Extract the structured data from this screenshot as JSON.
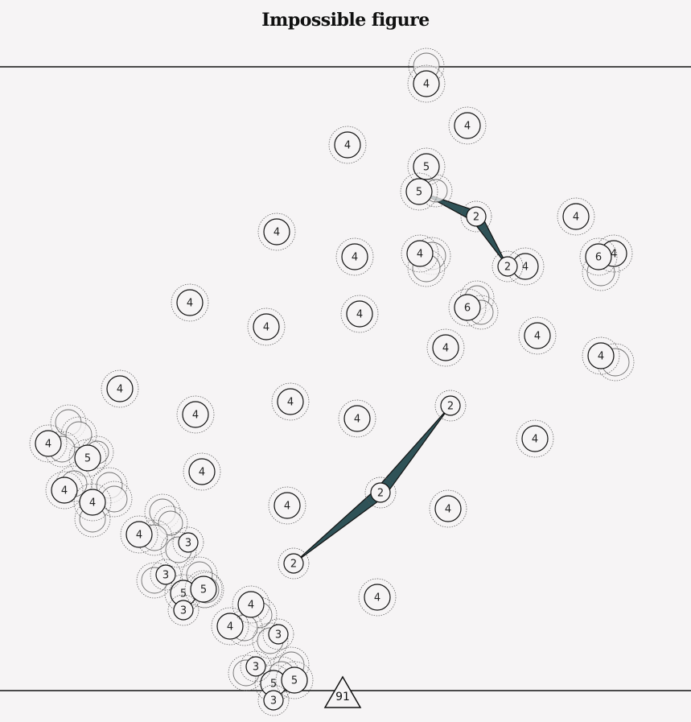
{
  "title": "Impossible figure",
  "badge": {
    "value": "91",
    "shape": "triangle"
  },
  "colors": {
    "background": "#f6f4f5",
    "wedge": "#2f5257",
    "line": "#111111",
    "node_fill": "#f6f4f5"
  },
  "wedges": [
    {
      "from": "n-top-5b",
      "via": "n-top-2a",
      "to": "n-top-2b"
    },
    {
      "from": "n-mid-2a",
      "via": "n-mid-2b",
      "to": "n-mid-2c"
    }
  ],
  "nodes": [
    {
      "id": "n01",
      "label": "4"
    },
    {
      "id": "n02",
      "label": "4"
    },
    {
      "id": "n03",
      "label": "4"
    },
    {
      "id": "n04",
      "label": "4"
    },
    {
      "id": "n05",
      "label": "5"
    },
    {
      "id": "n-top-5b",
      "label": "5"
    },
    {
      "id": "n-top-2a",
      "label": "2"
    },
    {
      "id": "n08",
      "label": "4"
    },
    {
      "id": "n09",
      "label": "4"
    },
    {
      "id": "n10",
      "label": "4"
    },
    {
      "id": "n11",
      "label": "4"
    },
    {
      "id": "n-top-2b",
      "label": "2"
    },
    {
      "id": "n13",
      "label": "4"
    },
    {
      "id": "n14",
      "label": "6"
    },
    {
      "id": "n15",
      "label": "4"
    },
    {
      "id": "n16",
      "label": "4"
    },
    {
      "id": "n17",
      "label": "6"
    },
    {
      "id": "n18",
      "label": "4"
    },
    {
      "id": "n19",
      "label": "4"
    },
    {
      "id": "n20",
      "label": "4"
    },
    {
      "id": "n21",
      "label": "4"
    },
    {
      "id": "n22",
      "label": "4"
    },
    {
      "id": "n23",
      "label": "4"
    },
    {
      "id": "n24",
      "label": "4"
    },
    {
      "id": "n-mid-2a",
      "label": "2"
    },
    {
      "id": "n26",
      "label": "4"
    },
    {
      "id": "n27",
      "label": "4"
    },
    {
      "id": "n28",
      "label": "4"
    },
    {
      "id": "n29",
      "label": "4"
    },
    {
      "id": "n-mid-2b",
      "label": "2"
    },
    {
      "id": "n31",
      "label": "4"
    },
    {
      "id": "n-mid-2c",
      "label": "2"
    },
    {
      "id": "n33",
      "label": "4"
    },
    {
      "id": "n34",
      "label": "4"
    },
    {
      "id": "n35",
      "label": "5"
    },
    {
      "id": "n36",
      "label": "4"
    },
    {
      "id": "n37",
      "label": "4"
    },
    {
      "id": "n38",
      "label": "4"
    },
    {
      "id": "n39",
      "label": "3"
    },
    {
      "id": "n40",
      "label": "5"
    },
    {
      "id": "n41",
      "label": "3"
    },
    {
      "id": "n42",
      "label": "5"
    },
    {
      "id": "n43",
      "label": "3"
    },
    {
      "id": "n44",
      "label": "4"
    },
    {
      "id": "n45",
      "label": "4"
    },
    {
      "id": "n46",
      "label": "3"
    },
    {
      "id": "n47",
      "label": "5"
    },
    {
      "id": "n48",
      "label": "3"
    },
    {
      "id": "n49",
      "label": "5"
    },
    {
      "id": "n50",
      "label": "3"
    }
  ]
}
